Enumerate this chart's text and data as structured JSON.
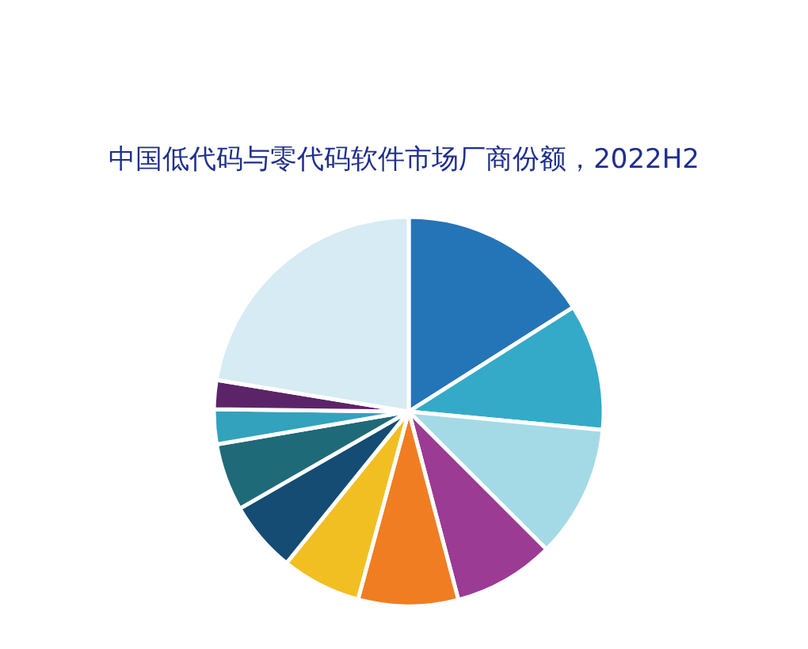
{
  "chart_data": {
    "type": "pie",
    "title": "中国低代码与零代码软件市场厂商份额，2022H2",
    "categories": [
      null,
      null,
      null,
      null,
      null,
      null,
      null,
      null,
      null,
      null,
      null
    ],
    "values": [
      16,
      10.5,
      11,
      8.4,
      8.3,
      6.6,
      5.9,
      5.6,
      2.9,
      2.4,
      22.4
    ],
    "colors": [
      "#2474b8",
      "#34aac8",
      "#a4dae6",
      "#9b3b93",
      "#f07d22",
      "#f2bf22",
      "#144c74",
      "#1f6a78",
      "#33a2bc",
      "#5c2468",
      "#d6ebf3"
    ]
  }
}
